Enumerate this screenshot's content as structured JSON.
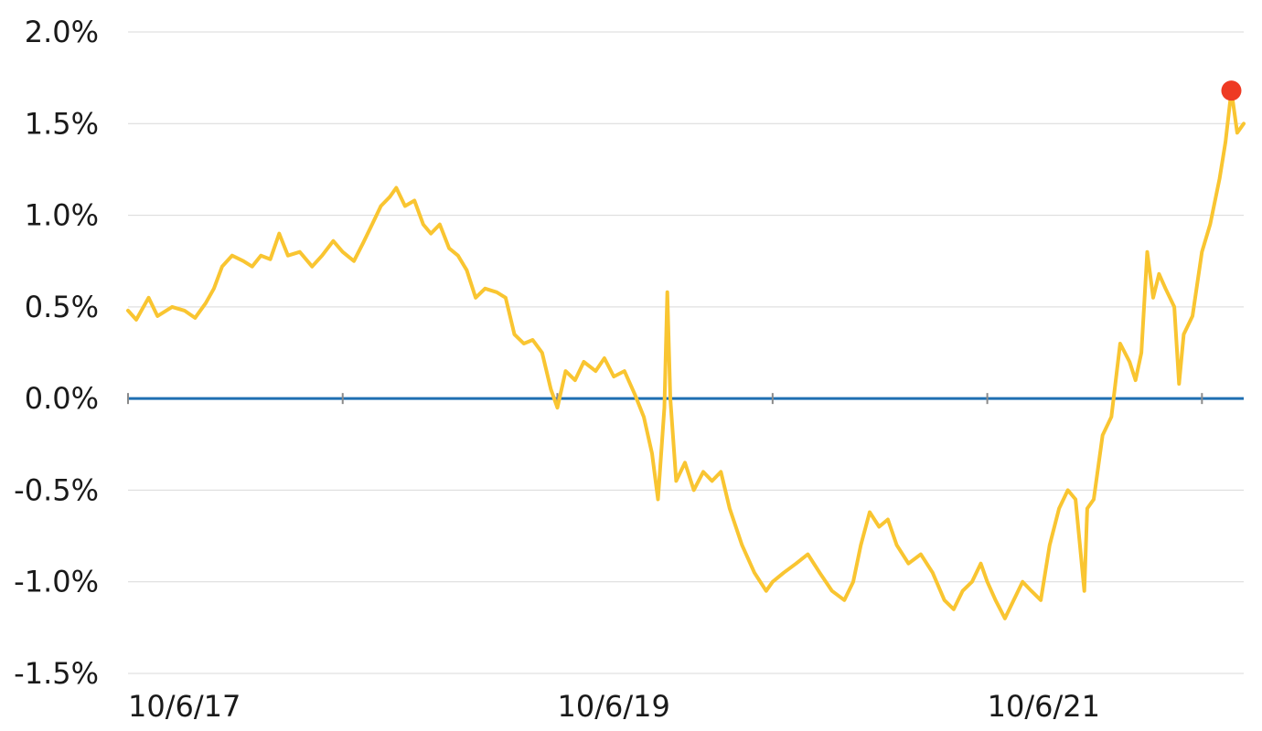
{
  "chart_data": {
    "type": "line",
    "title": "",
    "xlabel": "",
    "ylabel": "",
    "x_range": [
      "2017-10-06",
      "2022-12-16"
    ],
    "ylim": [
      -1.5,
      2.0
    ],
    "y_ticks": [
      {
        "value": 2.0,
        "label": "2.0%"
      },
      {
        "value": 1.5,
        "label": "1.5%"
      },
      {
        "value": 1.0,
        "label": "1.0%"
      },
      {
        "value": 0.5,
        "label": "0.5%"
      },
      {
        "value": 0.0,
        "label": "0.0%"
      },
      {
        "value": -0.5,
        "label": "-0.5%"
      },
      {
        "value": -1.0,
        "label": "-1.0%"
      },
      {
        "value": -1.5,
        "label": "-1.5%"
      }
    ],
    "x_tick_labels": [
      {
        "date": "2017-10-06",
        "label": "10/6/17"
      },
      {
        "date": "2019-10-06",
        "label": "10/6/19"
      },
      {
        "date": "2021-10-06",
        "label": "10/6/21"
      }
    ],
    "x_tick_marks": [
      "2017-10-06",
      "2018-10-06",
      "2019-10-06",
      "2020-10-06",
      "2021-10-06",
      "2022-10-06"
    ],
    "grid": "horizontal",
    "legend": "none",
    "colors": {
      "series": "#F9C531",
      "zero_line": "#1F6FB2",
      "grid": "#D9D9D9",
      "marker": "#EE3A23",
      "tick": "#8A8A8A"
    },
    "series": [
      {
        "points": [
          [
            "2017-10-06",
            0.48
          ],
          [
            "2017-10-20",
            0.43
          ],
          [
            "2017-11-10",
            0.55
          ],
          [
            "2017-11-25",
            0.45
          ],
          [
            "2017-12-20",
            0.5
          ],
          [
            "2018-01-10",
            0.48
          ],
          [
            "2018-01-28",
            0.44
          ],
          [
            "2018-02-15",
            0.52
          ],
          [
            "2018-03-01",
            0.6
          ],
          [
            "2018-03-15",
            0.72
          ],
          [
            "2018-04-01",
            0.78
          ],
          [
            "2018-04-20",
            0.75
          ],
          [
            "2018-05-05",
            0.72
          ],
          [
            "2018-05-20",
            0.78
          ],
          [
            "2018-06-05",
            0.76
          ],
          [
            "2018-06-20",
            0.9
          ],
          [
            "2018-07-05",
            0.78
          ],
          [
            "2018-07-25",
            0.8
          ],
          [
            "2018-08-15",
            0.72
          ],
          [
            "2018-09-01",
            0.78
          ],
          [
            "2018-09-20",
            0.86
          ],
          [
            "2018-10-06",
            0.8
          ],
          [
            "2018-10-25",
            0.75
          ],
          [
            "2018-11-10",
            0.85
          ],
          [
            "2018-11-25",
            0.95
          ],
          [
            "2018-12-10",
            1.05
          ],
          [
            "2018-12-25",
            1.1
          ],
          [
            "2019-01-05",
            1.15
          ],
          [
            "2019-01-20",
            1.05
          ],
          [
            "2019-02-05",
            1.08
          ],
          [
            "2019-02-20",
            0.95
          ],
          [
            "2019-03-05",
            0.9
          ],
          [
            "2019-03-20",
            0.95
          ],
          [
            "2019-04-05",
            0.82
          ],
          [
            "2019-04-20",
            0.78
          ],
          [
            "2019-05-05",
            0.7
          ],
          [
            "2019-05-20",
            0.55
          ],
          [
            "2019-06-05",
            0.6
          ],
          [
            "2019-06-25",
            0.58
          ],
          [
            "2019-07-10",
            0.55
          ],
          [
            "2019-07-25",
            0.35
          ],
          [
            "2019-08-10",
            0.3
          ],
          [
            "2019-08-25",
            0.32
          ],
          [
            "2019-09-10",
            0.25
          ],
          [
            "2019-09-25",
            0.05
          ],
          [
            "2019-10-06",
            -0.05
          ],
          [
            "2019-10-20",
            0.15
          ],
          [
            "2019-11-05",
            0.1
          ],
          [
            "2019-11-20",
            0.2
          ],
          [
            "2019-12-10",
            0.15
          ],
          [
            "2019-12-25",
            0.22
          ],
          [
            "2020-01-10",
            0.12
          ],
          [
            "2020-01-28",
            0.15
          ],
          [
            "2020-02-15",
            0.02
          ],
          [
            "2020-03-01",
            -0.1
          ],
          [
            "2020-03-15",
            -0.3
          ],
          [
            "2020-03-25",
            -0.55
          ],
          [
            "2020-04-05",
            -0.05
          ],
          [
            "2020-04-10",
            0.58
          ],
          [
            "2020-04-15",
            0.0
          ],
          [
            "2020-04-25",
            -0.45
          ],
          [
            "2020-05-10",
            -0.35
          ],
          [
            "2020-05-25",
            -0.5
          ],
          [
            "2020-06-10",
            -0.4
          ],
          [
            "2020-06-25",
            -0.45
          ],
          [
            "2020-07-10",
            -0.4
          ],
          [
            "2020-07-25",
            -0.6
          ],
          [
            "2020-08-15",
            -0.8
          ],
          [
            "2020-09-05",
            -0.95
          ],
          [
            "2020-09-25",
            -1.05
          ],
          [
            "2020-10-06",
            -1.0
          ],
          [
            "2020-10-25",
            -0.95
          ],
          [
            "2020-11-15",
            -0.9
          ],
          [
            "2020-12-05",
            -0.85
          ],
          [
            "2020-12-25",
            -0.95
          ],
          [
            "2021-01-15",
            -1.05
          ],
          [
            "2021-02-05",
            -1.1
          ],
          [
            "2021-02-20",
            -1.0
          ],
          [
            "2021-03-05",
            -0.8
          ],
          [
            "2021-03-20",
            -0.62
          ],
          [
            "2021-04-05",
            -0.7
          ],
          [
            "2021-04-20",
            -0.66
          ],
          [
            "2021-05-05",
            -0.8
          ],
          [
            "2021-05-25",
            -0.9
          ],
          [
            "2021-06-15",
            -0.85
          ],
          [
            "2021-07-05",
            -0.95
          ],
          [
            "2021-07-25",
            -1.1
          ],
          [
            "2021-08-10",
            -1.15
          ],
          [
            "2021-08-25",
            -1.05
          ],
          [
            "2021-09-10",
            -1.0
          ],
          [
            "2021-09-25",
            -0.9
          ],
          [
            "2021-10-06",
            -1.0
          ],
          [
            "2021-10-20",
            -1.1
          ],
          [
            "2021-11-05",
            -1.2
          ],
          [
            "2021-11-20",
            -1.1
          ],
          [
            "2021-12-05",
            -1.0
          ],
          [
            "2021-12-20",
            -1.05
          ],
          [
            "2022-01-05",
            -1.1
          ],
          [
            "2022-01-20",
            -0.8
          ],
          [
            "2022-02-05",
            -0.6
          ],
          [
            "2022-02-20",
            -0.5
          ],
          [
            "2022-03-05",
            -0.55
          ],
          [
            "2022-03-20",
            -1.05
          ],
          [
            "2022-03-25",
            -0.6
          ],
          [
            "2022-04-05",
            -0.55
          ],
          [
            "2022-04-20",
            -0.2
          ],
          [
            "2022-05-05",
            -0.1
          ],
          [
            "2022-05-20",
            0.3
          ],
          [
            "2022-06-05",
            0.2
          ],
          [
            "2022-06-15",
            0.1
          ],
          [
            "2022-06-25",
            0.25
          ],
          [
            "2022-07-05",
            0.8
          ],
          [
            "2022-07-15",
            0.55
          ],
          [
            "2022-07-25",
            0.68
          ],
          [
            "2022-08-05",
            0.6
          ],
          [
            "2022-08-20",
            0.5
          ],
          [
            "2022-08-28",
            0.08
          ],
          [
            "2022-09-05",
            0.35
          ],
          [
            "2022-09-20",
            0.45
          ],
          [
            "2022-10-06",
            0.8
          ],
          [
            "2022-10-20",
            0.95
          ],
          [
            "2022-11-05",
            1.2
          ],
          [
            "2022-11-15",
            1.4
          ],
          [
            "2022-11-25",
            1.68
          ],
          [
            "2022-12-05",
            1.45
          ],
          [
            "2022-12-16",
            1.5
          ]
        ]
      }
    ],
    "highlight_point": {
      "date": "2022-11-25",
      "value": 1.68
    }
  }
}
